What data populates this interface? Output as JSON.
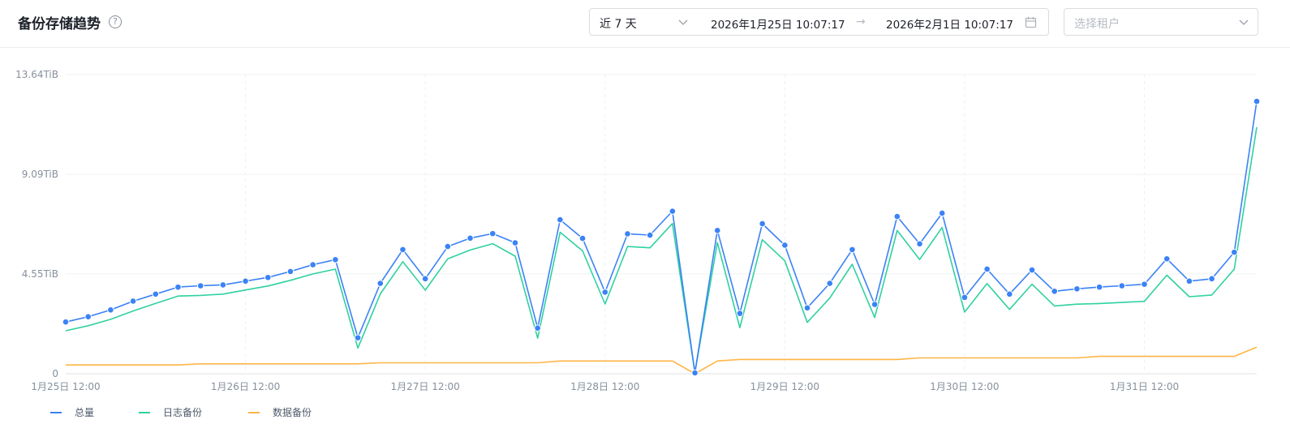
{
  "header": {
    "title": "备份存储趋势",
    "help_glyph": "?",
    "range": "近 7 天",
    "date_start": "2026年1月25日 10:07:17",
    "date_arrow": "→",
    "date_end": "2026年2月1日 10:07:17",
    "tenant_placeholder": "选择租户"
  },
  "icons": [
    "help-icon",
    "chevron-down-icon",
    "calendar-icon"
  ],
  "colors": {
    "total": "#3b82f6",
    "log": "#2fd1a0",
    "data": "#ffb547",
    "grid": "#eef0f3",
    "axis_text": "#86909c"
  },
  "chart_data": {
    "type": "line",
    "title": "备份存储趋势",
    "xlabel": "",
    "ylabel": "",
    "y_unit": "TiB",
    "ylim": [
      0,
      13.64
    ],
    "y_ticks": [
      {
        "value": 0,
        "label": "0"
      },
      {
        "value": 4.55,
        "label": "4.55TiB"
      },
      {
        "value": 9.09,
        "label": "9.09TiB"
      },
      {
        "value": 13.64,
        "label": "13.64TiB"
      }
    ],
    "x_ticks": [
      {
        "index": 0,
        "label": "1月25日 12:00"
      },
      {
        "index": 8,
        "label": "1月26日 12:00"
      },
      {
        "index": 16,
        "label": "1月27日 12:00"
      },
      {
        "index": 24,
        "label": "1月28日 12:00"
      },
      {
        "index": 32,
        "label": "1月29日 12:00"
      },
      {
        "index": 40,
        "label": "1月30日 12:00"
      },
      {
        "index": 48,
        "label": "1月31日 12:00"
      }
    ],
    "x_interval_hours": 3,
    "grid": true,
    "legend_position": "bottom-left",
    "series": [
      {
        "name": "总量",
        "color": "#3b82f6",
        "markers": true,
        "values": [
          2.36,
          2.6,
          2.91,
          3.31,
          3.63,
          3.95,
          4.01,
          4.05,
          4.22,
          4.39,
          4.66,
          4.97,
          5.2,
          1.64,
          4.12,
          5.66,
          4.33,
          5.8,
          6.18,
          6.39,
          5.97,
          2.08,
          7.02,
          6.17,
          3.72,
          6.38,
          6.32,
          7.41,
          0.04,
          6.53,
          2.75,
          6.84,
          5.86,
          3.0,
          4.12,
          5.66,
          3.16,
          7.17,
          5.92,
          7.32,
          3.48,
          4.77,
          3.63,
          4.73,
          3.76,
          3.87,
          3.95,
          4.01,
          4.08,
          5.24,
          4.22,
          4.33,
          5.54,
          12.42
        ]
      },
      {
        "name": "日志备份",
        "color": "#2fd1a0",
        "markers": false,
        "values": [
          1.96,
          2.19,
          2.48,
          2.86,
          3.21,
          3.54,
          3.57,
          3.63,
          3.82,
          4.0,
          4.26,
          4.55,
          4.77,
          1.17,
          3.64,
          5.11,
          3.81,
          5.24,
          5.64,
          5.93,
          5.36,
          1.62,
          6.45,
          5.6,
          3.18,
          5.8,
          5.74,
          6.85,
          0.04,
          5.98,
          2.1,
          6.11,
          5.15,
          2.34,
          3.45,
          4.99,
          2.56,
          6.53,
          5.21,
          6.67,
          2.81,
          4.11,
          2.93,
          4.08,
          3.09,
          3.17,
          3.2,
          3.25,
          3.3,
          4.49,
          3.51,
          3.59,
          4.77,
          11.24
        ]
      },
      {
        "name": "数据备份",
        "color": "#ffb547",
        "markers": false,
        "values": [
          0.4,
          0.4,
          0.4,
          0.4,
          0.4,
          0.4,
          0.45,
          0.45,
          0.45,
          0.45,
          0.45,
          0.45,
          0.45,
          0.45,
          0.5,
          0.5,
          0.5,
          0.5,
          0.5,
          0.5,
          0.5,
          0.5,
          0.58,
          0.58,
          0.58,
          0.58,
          0.58,
          0.58,
          0.0,
          0.58,
          0.65,
          0.65,
          0.65,
          0.65,
          0.65,
          0.65,
          0.65,
          0.65,
          0.72,
          0.72,
          0.72,
          0.72,
          0.72,
          0.72,
          0.72,
          0.72,
          0.79,
          0.79,
          0.79,
          0.79,
          0.79,
          0.79,
          0.79,
          1.21
        ]
      }
    ]
  }
}
